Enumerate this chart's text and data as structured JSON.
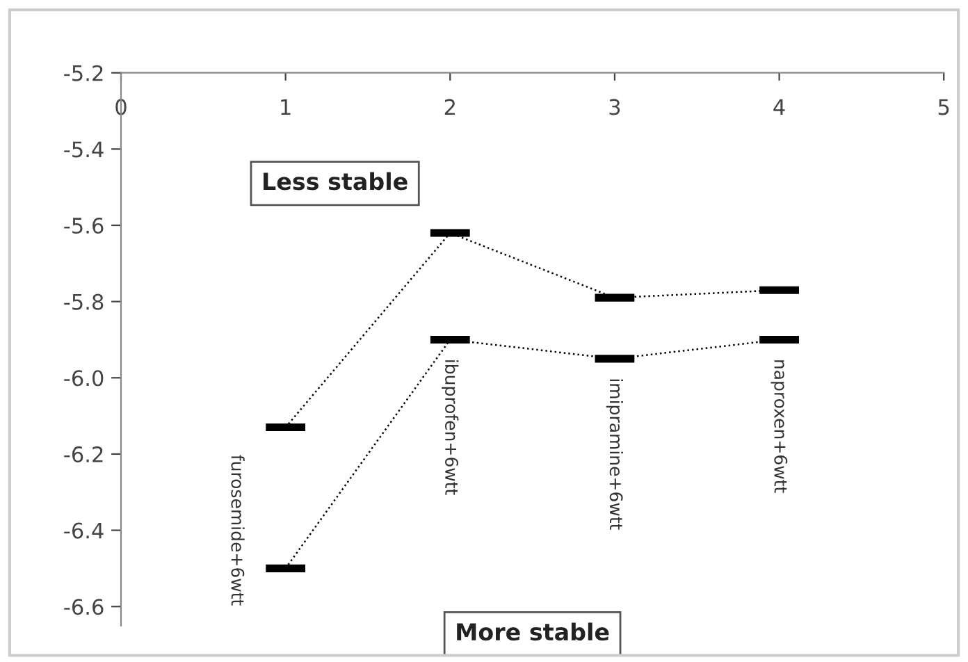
{
  "chart_data": {
    "type": "line",
    "series": [
      {
        "color": "#000000",
        "values": [
          -6.13,
          -5.62,
          -5.79,
          -5.77
        ],
        "xerrors": [
          0.12,
          0.12,
          0.12,
          0.12
        ]
      },
      {
        "color": "#000000",
        "values": [
          -6.5,
          -5.9,
          -5.95,
          -5.9
        ],
        "xerrors": [
          0.12,
          0.12,
          0.12,
          0.12
        ]
      }
    ],
    "x": [
      1,
      2,
      3,
      4
    ],
    "xlim": [
      0,
      5
    ],
    "xticks": [
      0,
      1,
      2,
      3,
      4,
      5
    ],
    "ylim": [
      -6.65,
      -5.2
    ],
    "yticks": [
      {
        "value": -5.2,
        "label": "-5.2"
      },
      {
        "value": -5.4,
        "label": "-5.4"
      },
      {
        "value": -5.6,
        "label": "-5.6"
      },
      {
        "value": -5.8,
        "label": "-5.8"
      },
      {
        "value": -6.0,
        "label": "-6.0"
      },
      {
        "value": -6.2,
        "label": "-6.2"
      },
      {
        "value": -6.4,
        "label": "-6.4"
      },
      {
        "value": -6.6,
        "label": "-6.6"
      }
    ],
    "line_style": "dotted",
    "grid": false,
    "legend": false,
    "annotations": [
      {
        "text": "furosemide+6wtt",
        "x": 1,
        "y": -6.5
      },
      {
        "text": "ibuprofen+6wtt",
        "x": 2,
        "y": -5.9
      },
      {
        "text": "imipramine+6wtt",
        "x": 3,
        "y": -5.95
      },
      {
        "text": "naproxen+6wtt",
        "x": 4,
        "y": -5.9
      },
      "Less stable",
      "More stable"
    ]
  }
}
